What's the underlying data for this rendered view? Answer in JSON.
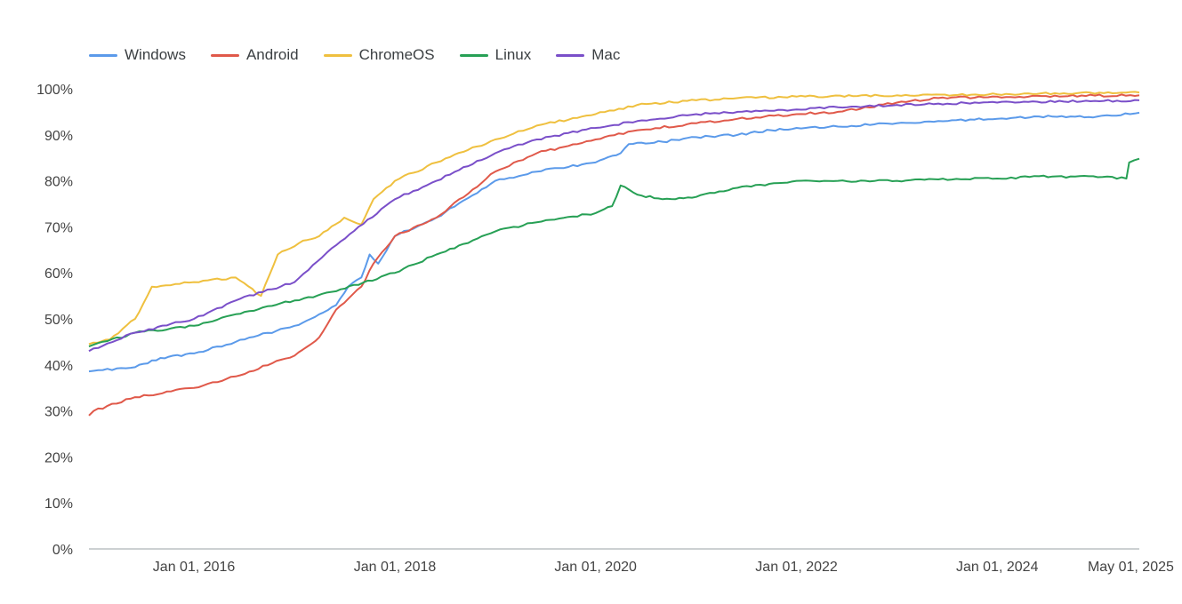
{
  "chart_data": {
    "type": "line",
    "x_type": "date",
    "xlim": [
      "2014-12-15",
      "2025-06-01"
    ],
    "ylim": [
      0,
      100
    ],
    "y_unit": "%",
    "y_ticks": [
      0,
      10,
      20,
      30,
      40,
      50,
      60,
      70,
      80,
      90,
      100
    ],
    "y_tick_labels": [
      "0%",
      "10%",
      "20%",
      "30%",
      "40%",
      "50%",
      "60%",
      "70%",
      "80%",
      "90%",
      "100%"
    ],
    "x_ticks": [
      "2016-01-01",
      "2018-01-01",
      "2020-01-01",
      "2022-01-01",
      "2024-01-01",
      "2025-05-01"
    ],
    "x_tick_labels": [
      "Jan 01, 2016",
      "Jan 01, 2018",
      "Jan 01, 2020",
      "Jan 01, 2022",
      "Jan 01, 2024",
      "May 01, 2025"
    ],
    "grid": false,
    "legend_position": "top-left",
    "series": [
      {
        "name": "Windows",
        "color": "#5b9aea",
        "points": [
          [
            "2014-12-15",
            38.6
          ],
          [
            "2015-06-01",
            39.5
          ],
          [
            "2015-09-01",
            41.5
          ],
          [
            "2016-01-01",
            42.5
          ],
          [
            "2016-06-01",
            45
          ],
          [
            "2017-01-01",
            48.5
          ],
          [
            "2017-03-01",
            50
          ],
          [
            "2017-06-01",
            53
          ],
          [
            "2017-07-15",
            57
          ],
          [
            "2017-09-01",
            59
          ],
          [
            "2017-10-01",
            64
          ],
          [
            "2017-11-01",
            62
          ],
          [
            "2018-01-01",
            68
          ],
          [
            "2018-06-01",
            72
          ],
          [
            "2019-01-01",
            80
          ],
          [
            "2019-06-01",
            82
          ],
          [
            "2020-01-01",
            84
          ],
          [
            "2020-04-01",
            86
          ],
          [
            "2020-05-01",
            88
          ],
          [
            "2020-09-01",
            88.5
          ],
          [
            "2021-01-01",
            89.5
          ],
          [
            "2021-06-01",
            90
          ],
          [
            "2021-10-01",
            91
          ],
          [
            "2022-01-01",
            91.5
          ],
          [
            "2022-06-01",
            91.8
          ],
          [
            "2023-01-01",
            92.5
          ],
          [
            "2023-06-01",
            93
          ],
          [
            "2024-01-01",
            93.5
          ],
          [
            "2024-06-01",
            94
          ],
          [
            "2025-01-01",
            94
          ],
          [
            "2025-06-01",
            94.8
          ]
        ]
      },
      {
        "name": "Android",
        "color": "#e0594a",
        "points": [
          [
            "2014-12-15",
            29
          ],
          [
            "2015-01-01",
            30
          ],
          [
            "2015-06-01",
            33
          ],
          [
            "2016-01-01",
            35
          ],
          [
            "2016-06-01",
            37.5
          ],
          [
            "2017-01-01",
            42
          ],
          [
            "2017-04-01",
            46
          ],
          [
            "2017-06-01",
            52
          ],
          [
            "2017-09-01",
            57
          ],
          [
            "2017-10-15",
            62
          ],
          [
            "2018-01-01",
            68
          ],
          [
            "2018-06-01",
            72
          ],
          [
            "2019-01-01",
            82
          ],
          [
            "2019-06-01",
            86
          ],
          [
            "2020-01-01",
            89
          ],
          [
            "2020-06-01",
            91
          ],
          [
            "2021-01-01",
            92.5
          ],
          [
            "2021-06-01",
            93.5
          ],
          [
            "2022-01-01",
            94.5
          ],
          [
            "2022-06-01",
            95
          ],
          [
            "2023-01-01",
            97
          ],
          [
            "2023-06-01",
            98
          ],
          [
            "2024-01-01",
            98.3
          ],
          [
            "2025-06-01",
            98.6
          ]
        ]
      },
      {
        "name": "ChromeOS",
        "color": "#efc03f",
        "points": [
          [
            "2014-12-15",
            44.5
          ],
          [
            "2015-03-01",
            45.5
          ],
          [
            "2015-06-01",
            50
          ],
          [
            "2015-08-01",
            57
          ],
          [
            "2016-01-01",
            58
          ],
          [
            "2016-06-01",
            59
          ],
          [
            "2016-09-01",
            55
          ],
          [
            "2016-11-01",
            64
          ],
          [
            "2017-02-01",
            67
          ],
          [
            "2017-04-01",
            68
          ],
          [
            "2017-07-01",
            72
          ],
          [
            "2017-09-01",
            70.5
          ],
          [
            "2017-10-15",
            76
          ],
          [
            "2018-01-01",
            80
          ],
          [
            "2018-06-01",
            84
          ],
          [
            "2019-01-01",
            89
          ],
          [
            "2019-06-01",
            92
          ],
          [
            "2020-01-01",
            94.5
          ],
          [
            "2020-06-01",
            96.5
          ],
          [
            "2021-01-01",
            97.5
          ],
          [
            "2021-06-01",
            98
          ],
          [
            "2022-01-01",
            98.3
          ],
          [
            "2023-01-01",
            98.6
          ],
          [
            "2024-01-01",
            98.8
          ],
          [
            "2025-06-01",
            99.2
          ]
        ]
      },
      {
        "name": "Linux",
        "color": "#27a055",
        "points": [
          [
            "2014-12-15",
            44
          ],
          [
            "2015-06-01",
            47
          ],
          [
            "2016-01-01",
            48.5
          ],
          [
            "2016-06-01",
            51
          ],
          [
            "2017-01-01",
            54
          ],
          [
            "2017-06-01",
            56
          ],
          [
            "2018-01-01",
            60
          ],
          [
            "2018-06-01",
            64
          ],
          [
            "2019-01-01",
            69
          ],
          [
            "2019-06-01",
            71
          ],
          [
            "2020-01-01",
            73
          ],
          [
            "2020-03-01",
            74.5
          ],
          [
            "2020-04-01",
            79
          ],
          [
            "2020-06-01",
            77
          ],
          [
            "2020-09-01",
            76
          ],
          [
            "2021-01-01",
            76.5
          ],
          [
            "2021-06-01",
            78.5
          ],
          [
            "2022-01-01",
            80
          ],
          [
            "2022-06-01",
            80
          ],
          [
            "2023-01-01",
            80
          ],
          [
            "2023-06-01",
            80.3
          ],
          [
            "2024-01-01",
            80.5
          ],
          [
            "2024-06-01",
            81
          ],
          [
            "2025-01-01",
            80.8
          ],
          [
            "2025-04-15",
            80.5
          ],
          [
            "2025-04-25",
            84
          ],
          [
            "2025-06-01",
            84.8
          ]
        ]
      },
      {
        "name": "Mac",
        "color": "#7a4fc9",
        "points": [
          [
            "2014-12-15",
            43
          ],
          [
            "2015-06-01",
            47
          ],
          [
            "2016-01-01",
            50
          ],
          [
            "2016-06-01",
            54
          ],
          [
            "2017-01-01",
            58
          ],
          [
            "2017-06-01",
            66
          ],
          [
            "2018-01-01",
            76
          ],
          [
            "2018-06-01",
            80
          ],
          [
            "2019-01-01",
            86
          ],
          [
            "2019-06-01",
            89
          ],
          [
            "2020-01-01",
            91.5
          ],
          [
            "2020-06-01",
            93
          ],
          [
            "2021-01-01",
            94.5
          ],
          [
            "2021-06-01",
            95
          ],
          [
            "2022-01-01",
            95.5
          ],
          [
            "2022-06-01",
            96
          ],
          [
            "2023-01-01",
            96.5
          ],
          [
            "2023-06-01",
            96.8
          ],
          [
            "2024-01-01",
            97
          ],
          [
            "2025-06-01",
            97.5
          ]
        ]
      }
    ]
  }
}
